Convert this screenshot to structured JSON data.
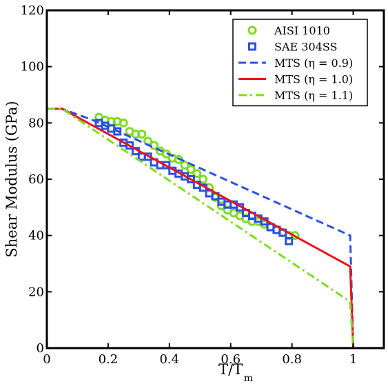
{
  "chart_data": {
    "type": "scatter",
    "xlabel": "T/T",
    "xlabel_sub": "m",
    "ylabel": "Shear Modulus (GPa)",
    "xlim": [
      0,
      1.1
    ],
    "ylim": [
      0,
      120
    ],
    "x_ticks": [
      0,
      0.2,
      0.4,
      0.6,
      0.8,
      1
    ],
    "x_tick_labels": [
      "0",
      "0.2",
      "0.4",
      "0.6",
      "0.8",
      "1"
    ],
    "y_ticks": [
      0,
      20,
      40,
      60,
      80,
      100,
      120
    ],
    "y_tick_labels": [
      "0",
      "20",
      "40",
      "60",
      "80",
      "100",
      "120"
    ],
    "grid": false,
    "legend_position": "top-right",
    "series": [
      {
        "name": "AISI 1010",
        "kind": "scatter",
        "marker": "circle",
        "color": "#7ddc1f",
        "x": [
          0.17,
          0.19,
          0.21,
          0.23,
          0.25,
          0.27,
          0.29,
          0.31,
          0.33,
          0.35,
          0.37,
          0.39,
          0.41,
          0.43,
          0.45,
          0.47,
          0.49,
          0.51,
          0.53,
          0.55,
          0.57,
          0.59,
          0.61,
          0.63,
          0.65,
          0.67,
          0.69,
          0.71,
          0.73,
          0.75,
          0.77,
          0.79,
          0.81
        ],
        "y": [
          82,
          81,
          80.5,
          80.5,
          80,
          77,
          76,
          76,
          73.5,
          72,
          70,
          69,
          67.5,
          67,
          65,
          63.5,
          62,
          60,
          57,
          53.5,
          50.5,
          49,
          48,
          47,
          46,
          45,
          45,
          44,
          43,
          42,
          41,
          40,
          40
        ]
      },
      {
        "name": "SAE 304SS",
        "kind": "scatter",
        "marker": "square",
        "color": "#2b50e6",
        "x": [
          0.17,
          0.19,
          0.21,
          0.23,
          0.25,
          0.27,
          0.29,
          0.31,
          0.33,
          0.35,
          0.37,
          0.39,
          0.41,
          0.43,
          0.45,
          0.47,
          0.49,
          0.51,
          0.53,
          0.55,
          0.57,
          0.59,
          0.61,
          0.63,
          0.65,
          0.67,
          0.69,
          0.71,
          0.73,
          0.75,
          0.77,
          0.79
        ],
        "y": [
          80,
          79,
          78,
          77,
          73,
          72,
          70,
          68,
          68,
          66,
          65,
          65,
          63,
          62,
          61,
          60,
          58,
          57,
          55,
          54,
          52,
          51,
          51,
          50,
          48,
          47,
          46,
          45,
          43,
          42,
          41,
          38
        ]
      },
      {
        "name": "MTS (η = 0.9)",
        "kind": "line",
        "style": "dashed",
        "color": "#2b50e6",
        "x": [
          0,
          0.05,
          0.15,
          0.99,
          1.0,
          1.1
        ],
        "y": [
          85,
          85,
          81,
          40,
          0,
          0
        ]
      },
      {
        "name": "MTS (η = 1.0)",
        "kind": "line",
        "style": "solid",
        "color": "#e8141a",
        "x": [
          0,
          0.05,
          0.99,
          1.0,
          1.1
        ],
        "y": [
          85,
          85,
          29,
          0,
          0
        ]
      },
      {
        "name": "MTS (η = 1.1)",
        "kind": "line",
        "style": "dashdot",
        "color": "#7ddc1f",
        "x": [
          0,
          0.05,
          0.99,
          1.0,
          1.1
        ],
        "y": [
          85,
          85,
          16.5,
          0,
          0
        ]
      }
    ]
  }
}
